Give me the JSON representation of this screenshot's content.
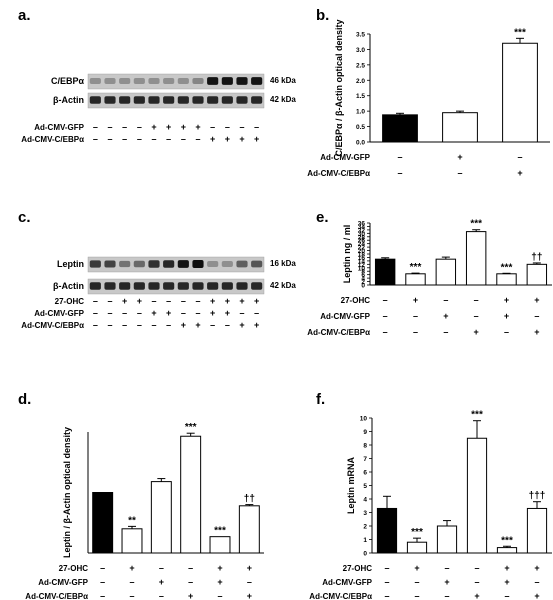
{
  "letters": {
    "a": "a.",
    "b": "b.",
    "c": "c.",
    "d": "d.",
    "e": "e.",
    "f": "f."
  },
  "treat": {
    "ohc": "27-OHC",
    "gfp": "Ad-CMV-GFP",
    "cebp": "Ad-CMV-C/EBPα"
  },
  "blots": {
    "a": {
      "bands": [
        {
          "name": "C/EBPα",
          "kda": "46 kDa"
        },
        {
          "name": "β-Actin",
          "kda": "42 kDa"
        }
      ],
      "rows": [
        {
          "label": "Ad-CMV-GFP",
          "marks": [
            "–",
            "–",
            "–",
            "–",
            "+",
            "+",
            "+",
            "+",
            "–",
            "–",
            "–",
            "–"
          ]
        },
        {
          "label": "Ad-CMV-C/EBPα",
          "marks": [
            "–",
            "–",
            "–",
            "–",
            "–",
            "–",
            "–",
            "–",
            "+",
            "+",
            "+",
            "+"
          ]
        }
      ],
      "levels": [
        0.3,
        0.3,
        0.3,
        0.3,
        0.3,
        0.3,
        0.3,
        0.35,
        0.95,
        0.95,
        0.95,
        0.95
      ]
    },
    "c": {
      "bands": [
        {
          "name": "Leptin",
          "kda": "16 kDa"
        },
        {
          "name": "β-Actin",
          "kda": "42 kDa"
        }
      ],
      "rows": [
        {
          "label": "27-OHC",
          "marks": [
            "–",
            "–",
            "+",
            "+",
            "–",
            "–",
            "–",
            "–",
            "+",
            "+",
            "+",
            "+"
          ]
        },
        {
          "label": "Ad-CMV-GFP",
          "marks": [
            "–",
            "–",
            "–",
            "–",
            "+",
            "+",
            "–",
            "–",
            "+",
            "+",
            "–",
            "–"
          ]
        },
        {
          "label": "Ad-CMV-C/EBPα",
          "marks": [
            "–",
            "–",
            "–",
            "–",
            "–",
            "–",
            "+",
            "+",
            "–",
            "–",
            "+",
            "+"
          ]
        }
      ],
      "levels": [
        0.75,
        0.7,
        0.45,
        0.5,
        0.8,
        0.85,
        0.95,
        0.98,
        0.3,
        0.3,
        0.55,
        0.6
      ]
    }
  },
  "chart_data": [
    {
      "panel": "b",
      "type": "bar",
      "ylabel": "C/EBPα / β-Actin optical density",
      "ylim": [
        0,
        3.5
      ],
      "yticks": [
        "0.0",
        "0.5",
        "1.0",
        "1.5",
        "2.0",
        "2.5",
        "3.0",
        "3.5"
      ],
      "values": [
        0.88,
        0.95,
        3.2
      ],
      "errors": [
        0.05,
        0.05,
        0.16
      ],
      "fills": [
        "#000000",
        "#ffffff",
        "#ffffff"
      ],
      "sig": [
        "",
        "",
        "***"
      ],
      "rows": [
        {
          "label": "Ad-CMV-GFP",
          "marks": [
            "–",
            "+",
            "–"
          ]
        },
        {
          "label": "Ad-CMV-C/EBPα",
          "marks": [
            "–",
            "–",
            "+"
          ]
        }
      ]
    },
    {
      "panel": "e",
      "type": "bar",
      "ylabel": "Leptin ng / ml",
      "ylim": [
        0,
        36
      ],
      "yticks": [
        "0",
        "2",
        "4",
        "6",
        "8",
        "10",
        "12",
        "14",
        "16",
        "18",
        "20",
        "22",
        "24",
        "26",
        "28",
        "30",
        "32",
        "34",
        "36"
      ],
      "values": [
        15,
        6.5,
        15,
        31,
        6.5,
        12
      ],
      "errors": [
        0.8,
        0.4,
        1.2,
        1.1,
        0.3,
        0.8
      ],
      "fills": [
        "#000000",
        "#ffffff",
        "#ffffff",
        "#ffffff",
        "#ffffff",
        "#ffffff"
      ],
      "sig": [
        "",
        "***",
        "",
        "***",
        "***",
        "††"
      ],
      "rows": [
        {
          "label": "27-OHC",
          "marks": [
            "–",
            "+",
            "–",
            "–",
            "+",
            "+"
          ]
        },
        {
          "label": "Ad-CMV-GFP",
          "marks": [
            "–",
            "–",
            "+",
            "–",
            "+",
            "–"
          ]
        },
        {
          "label": "Ad-CMV-C/EBPα",
          "marks": [
            "–",
            "–",
            "–",
            "+",
            "–",
            "+"
          ]
        }
      ]
    },
    {
      "panel": "d",
      "type": "bar",
      "ylabel": "Leptin / β-Actin optical density",
      "ylim": [
        0,
        2
      ],
      "yticks": [],
      "values": [
        1.0,
        0.4,
        1.18,
        1.93,
        0.27,
        0.78
      ],
      "errors": [
        0,
        0.04,
        0.05,
        0.05,
        0,
        0.02
      ],
      "fills": [
        "#000000",
        "#ffffff",
        "#ffffff",
        "#ffffff",
        "#ffffff",
        "#ffffff"
      ],
      "sig": [
        "",
        "**",
        "",
        "***",
        "***",
        "††"
      ],
      "rows": [
        {
          "label": "27-OHC",
          "marks": [
            "–",
            "+",
            "–",
            "–",
            "+",
            "+"
          ]
        },
        {
          "label": "Ad-CMV-GFP",
          "marks": [
            "–",
            "–",
            "+",
            "–",
            "+",
            "–"
          ]
        },
        {
          "label": "Ad-CMV-C/EBPα",
          "marks": [
            "–",
            "–",
            "–",
            "+",
            "–",
            "+"
          ]
        }
      ]
    },
    {
      "panel": "f",
      "type": "bar",
      "ylabel": "Leptin mRNA",
      "ylim": [
        0,
        10
      ],
      "yticks": [
        "0",
        "1",
        "2",
        "3",
        "4",
        "5",
        "6",
        "7",
        "8",
        "9",
        "10"
      ],
      "values": [
        3.3,
        0.8,
        2.0,
        8.5,
        0.4,
        3.3
      ],
      "errors": [
        0.9,
        0.3,
        0.4,
        1.3,
        0.1,
        0.5
      ],
      "fills": [
        "#000000",
        "#ffffff",
        "#ffffff",
        "#ffffff",
        "#ffffff",
        "#ffffff"
      ],
      "sig": [
        "",
        "***",
        "",
        "***",
        "***",
        "†††"
      ],
      "rows": [
        {
          "label": "27-OHC",
          "marks": [
            "–",
            "+",
            "–",
            "–",
            "+",
            "+"
          ]
        },
        {
          "label": "Ad-CMV-GFP",
          "marks": [
            "–",
            "–",
            "+",
            "–",
            "+",
            "–"
          ]
        },
        {
          "label": "Ad-CMV-C/EBPα",
          "marks": [
            "–",
            "–",
            "–",
            "+",
            "–",
            "+"
          ]
        }
      ]
    }
  ]
}
